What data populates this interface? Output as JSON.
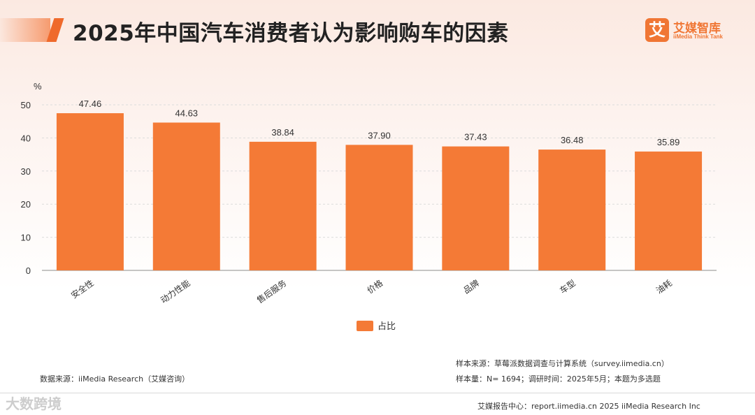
{
  "header": {
    "title": "2025年中国汽车消费者认为影响购车的因素"
  },
  "logo": {
    "mark": "艾",
    "name_cn": "艾媒智库",
    "name_en": "iiMedia Think Tank",
    "brand_color": "#f07634"
  },
  "chart_data": {
    "type": "bar",
    "unit_label": "%",
    "categories": [
      "安全性",
      "动力性能",
      "售后服务",
      "价格",
      "品牌",
      "车型",
      "油耗"
    ],
    "series": [
      {
        "name": "占比",
        "values": [
          47.46,
          44.63,
          38.84,
          37.9,
          37.43,
          36.48,
          35.89
        ],
        "color": "#f47a36"
      }
    ],
    "value_labels": [
      "47.46",
      "44.63",
      "38.84",
      "37.90",
      "37.43",
      "36.48",
      "35.89"
    ],
    "ylim": [
      0,
      50
    ],
    "yticks": [
      0,
      10,
      20,
      30,
      40,
      50
    ],
    "grid": true,
    "legend_position": "bottom-center"
  },
  "sources": {
    "data_source": "数据来源：iiMedia Research（艾媒咨询）",
    "sample_source": "样本来源：草莓派数据调查与计算系统（survey.iimedia.cn）",
    "sample_info": "样本量：N= 1694；调研时间：2025年5月；本题为多选题"
  },
  "footer": {
    "text": "艾媒报告中心：report.iimedia.cn   2025 iiMedia Research Inc",
    "watermark": "大数跨境"
  }
}
